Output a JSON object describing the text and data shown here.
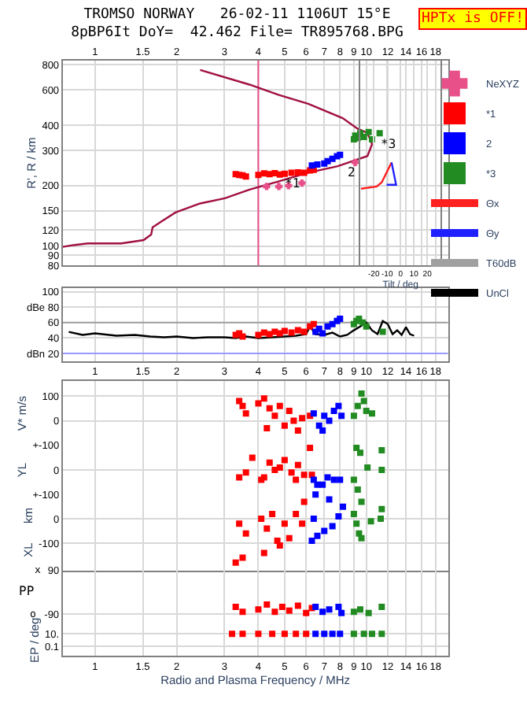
{
  "chart_data": [
    {
      "type": "scatter",
      "title": "TROMSO NORWAY   26-02-11 1106UT 15°E",
      "subtitle": "8pBP6It DoY=  42.462 File= TR895768.BPG",
      "ylabel": "R', R / km",
      "log": "xy",
      "xlim": [
        0.76,
        20
      ],
      "ylim": [
        80,
        840
      ],
      "xticks": [
        1,
        1.5,
        2,
        3,
        4,
        5,
        6,
        7,
        8,
        9,
        10,
        12,
        14,
        16,
        18
      ],
      "yticks": [
        80,
        90,
        100,
        120,
        150,
        200,
        300,
        400,
        600,
        800
      ],
      "grid": true,
      "legend": "right",
      "annotations": [
        "HPTx is OFF!",
        "*1",
        "2",
        "*3"
      ],
      "ref_lines": [
        {
          "axis": "x",
          "value": 4,
          "color": "#e8508a"
        }
      ],
      "series": [
        {
          "type": "line",
          "color": "#a01040",
          "marker": "none",
          "x": [
            0.76,
            0.83,
            0.94,
            1.25,
            1.51,
            1.61,
            1.63,
            1.75,
            1.98,
            2.44,
            3.01,
            3.71,
            4.76,
            6.11,
            7.85,
            10.1,
            10.5,
            10.1,
            9.28,
            8.18,
            6.11,
            4.76,
            3.71,
            2.44
          ],
          "values": [
            99,
            101,
            103,
            103,
            107,
            114,
            124,
            132,
            147,
            163,
            173,
            191,
            210,
            232,
            250,
            281,
            322,
            366,
            385,
            434,
            512,
            566,
            638,
            755
          ]
        },
        {
          "name": "NeXYZ",
          "color": "#e8508a",
          "marker": "cross",
          "x": [
            4.29,
            4.76,
            5.17,
            5.79,
            9.1
          ],
          "values": [
            198,
            198,
            200,
            206,
            261
          ]
        },
        {
          "name": "*1",
          "color": "#ff0000",
          "marker": "square",
          "x": [
            3.3,
            3.4,
            3.5,
            3.6,
            4.0,
            4.2,
            4.4,
            4.6,
            4.8,
            5.0,
            5.3,
            5.6,
            5.9,
            6.2,
            6.4
          ],
          "values": [
            228,
            226,
            225,
            222,
            226,
            230,
            228,
            231,
            227,
            229,
            232,
            233,
            232,
            238,
            240
          ]
        },
        {
          "name": "2",
          "color": "#0000ff",
          "marker": "square",
          "x": [
            6.3,
            6.6,
            7.0,
            7.2,
            7.5,
            7.8,
            8.0
          ],
          "values": [
            252,
            255,
            258,
            265,
            272,
            280,
            285
          ]
        },
        {
          "name": "*3",
          "color": "#228b22",
          "marker": "square",
          "x": [
            9.0,
            9.1,
            9.3,
            9.5,
            9.8,
            10.2,
            10.5,
            11.2
          ],
          "values": [
            340,
            355,
            345,
            365,
            350,
            370,
            340,
            365
          ]
        }
      ]
    },
    {
      "type": "line",
      "xlabel": "Tilt / deg",
      "log": "y",
      "xlim": [
        -30,
        30
      ],
      "ylim": [
        80,
        840
      ],
      "xticks": [
        -20,
        -10,
        0,
        10,
        20
      ],
      "tick_labels": "x",
      "grid": "x",
      "legend": "right",
      "series": [
        {
          "name": "Θx",
          "color": "#ff2020",
          "x": [
            -29.6,
            -17.8,
            -14,
            -6.7
          ],
          "values": [
            193,
            198,
            208,
            261
          ]
        },
        {
          "name": "Θy",
          "color": "#2020ff",
          "x": [
            -6.7,
            -3.3,
            -10.4
          ],
          "values": [
            261,
            202,
            202
          ]
        }
      ]
    },
    {
      "type": "scatter",
      "xlim": [
        0.76,
        20
      ],
      "log": "x",
      "ylim": [
        10,
        105
      ],
      "xticks": [
        1,
        1.5,
        2,
        3,
        4,
        5,
        6,
        7,
        8,
        9,
        10,
        12,
        14,
        16,
        18
      ],
      "yticks": [
        100,
        {
          "value": 80,
          "label": "dBe 80"
        },
        60,
        40,
        {
          "value": 20,
          "label": "dBn 20"
        }
      ],
      "grid": true,
      "legend": "right",
      "ref_lines": [
        {
          "axis": "y",
          "value": 60,
          "label": "T60dB",
          "color": "#a0a0a0"
        },
        {
          "axis": "y",
          "value": 20,
          "color": "#9999ff"
        }
      ],
      "series": [
        {
          "name": "UnCl",
          "type": "line",
          "color": "#000000",
          "marker": "none",
          "x": [
            0.8,
            0.9,
            1.0,
            1.2,
            1.4,
            1.6,
            1.8,
            2.0,
            2.3,
            2.6,
            3.0,
            3.3,
            3.6,
            4.0,
            4.5,
            5.0,
            5.5,
            6.0,
            6.2,
            6.5,
            7.0,
            7.5,
            8.0,
            8.5,
            9.0,
            9.5,
            10.0,
            10.5,
            11.0,
            11.5,
            12.0,
            12.5,
            13.0,
            13.5,
            14.0,
            14.5,
            15.0
          ],
          "values": [
            48,
            44,
            46,
            43,
            44,
            42,
            41,
            42,
            40,
            41,
            41,
            40,
            42,
            40,
            41,
            42,
            43,
            45,
            55,
            45,
            44,
            47,
            42,
            44,
            50,
            55,
            60,
            50,
            45,
            62,
            58,
            45,
            50,
            44,
            54,
            45,
            43
          ]
        },
        {
          "color": "#ff0000",
          "marker": "square",
          "x": [
            3.3,
            3.4,
            3.5,
            4.0,
            4.2,
            4.4,
            4.6,
            4.8,
            5.0,
            5.3,
            5.6,
            5.9,
            6.2,
            6.4
          ],
          "values": [
            44,
            46,
            42,
            44,
            47,
            45,
            48,
            46,
            49,
            47,
            50,
            48,
            55,
            58
          ]
        },
        {
          "color": "#0000ff",
          "marker": "square",
          "x": [
            6.5,
            6.7,
            6.9,
            7.2,
            7.5,
            7.8,
            8.0
          ],
          "values": [
            48,
            52,
            46,
            55,
            58,
            62,
            65
          ]
        },
        {
          "color": "#228b22",
          "marker": "square",
          "x": [
            9.0,
            9.2,
            9.4,
            9.7,
            10.0,
            11.5
          ],
          "values": [
            58,
            62,
            65,
            60,
            55,
            48
          ]
        }
      ]
    },
    {
      "type": "scatter",
      "ylabel": "V* m/s",
      "log": "x",
      "xlim": [
        0.76,
        20
      ],
      "ylim": [
        -100,
        160
      ],
      "xticks": [
        1,
        1.5,
        2,
        3,
        4,
        5,
        6,
        7,
        8,
        9,
        10,
        12,
        14,
        16,
        18
      ],
      "yticks": [
        100,
        0,
        {
          "value": -100,
          "label": "+-100"
        }
      ],
      "tick_labels": "y",
      "grid": true,
      "series": [
        {
          "color": "#ff0000",
          "marker": "square",
          "x": [
            3.4,
            3.5,
            3.6,
            4.0,
            4.2,
            4.4,
            4.6,
            4.8,
            5.0,
            5.2,
            5.4,
            5.6,
            5.8,
            4.3,
            6.2
          ],
          "values": [
            80,
            60,
            30,
            70,
            90,
            50,
            20,
            60,
            -20,
            40,
            0,
            -40,
            10,
            -30,
            20
          ]
        },
        {
          "color": "#0000ff",
          "marker": "square",
          "x": [
            6.4,
            6.7,
            7.0,
            7.3,
            7.6,
            7.9,
            8.1,
            6.9
          ],
          "values": [
            30,
            -20,
            20,
            0,
            40,
            60,
            20,
            -40
          ]
        },
        {
          "color": "#228b22",
          "marker": "square",
          "x": [
            9.0,
            9.3,
            9.6,
            10.0,
            10.5,
            9.8
          ],
          "values": [
            20,
            60,
            110,
            40,
            30,
            80
          ]
        }
      ]
    },
    {
      "type": "scatter",
      "ylabel": "YL",
      "log": "x",
      "xlim": [
        0.76,
        20
      ],
      "ylim": [
        -100,
        100
      ],
      "xticks": [
        1,
        1.5,
        2,
        3,
        4,
        5,
        6,
        7,
        8,
        9,
        10,
        12,
        14,
        16,
        18
      ],
      "yticks": [
        0,
        {
          "value": -100,
          "label": "+-100"
        }
      ],
      "tick_labels": "y",
      "grid": true,
      "series": [
        {
          "color": "#ff0000",
          "marker": "square",
          "x": [
            3.4,
            3.6,
            3.8,
            4.1,
            4.4,
            4.6,
            4.8,
            5.0,
            5.3,
            5.6,
            5.9,
            6.2,
            6.3,
            4.2,
            5.5
          ],
          "values": [
            -30,
            -10,
            50,
            -40,
            30,
            0,
            10,
            40,
            -10,
            20,
            -20,
            90,
            -20,
            -30,
            -40
          ]
        },
        {
          "color": "#0000ff",
          "marker": "square",
          "x": [
            6.4,
            6.6,
            6.9,
            7.2,
            7.6,
            8.0
          ],
          "values": [
            -40,
            -60,
            -60,
            -30,
            -40,
            -40
          ]
        },
        {
          "color": "#228b22",
          "marker": "square",
          "x": [
            9.0,
            9.2,
            9.5,
            10.1,
            11.4,
            11.4,
            9.3
          ],
          "values": [
            -40,
            90,
            70,
            10,
            80,
            0,
            -80
          ]
        }
      ]
    },
    {
      "type": "scatter",
      "ylabel": "XL      km",
      "log": "x",
      "xlim": [
        0.76,
        20
      ],
      "ylim": [
        -212,
        100
      ],
      "xticks": [
        1,
        1.5,
        2,
        3,
        4,
        5,
        6,
        7,
        8,
        9,
        10,
        12,
        14,
        16,
        18
      ],
      "yticks": [
        0,
        -100
      ],
      "tick_labels": "y",
      "grid": true,
      "series": [
        {
          "color": "#ff0000",
          "marker": "square",
          "x": [
            3.3,
            3.4,
            3.6,
            3.5,
            4.1,
            4.3,
            4.5,
            4.7,
            5.0,
            5.2,
            5.5,
            5.8,
            4.2,
            4.8,
            5.9
          ],
          "values": [
            -180,
            -20,
            -60,
            -160,
            0,
            -40,
            20,
            -90,
            -20,
            -80,
            20,
            -20,
            -140,
            -110,
            70
          ]
        },
        {
          "color": "#0000ff",
          "marker": "square",
          "x": [
            6.4,
            6.6,
            7.0,
            7.5,
            7.9,
            8.2,
            6.3,
            6.5,
            7.3
          ],
          "values": [
            0,
            -70,
            -50,
            -30,
            10,
            50,
            -90,
            100,
            80
          ]
        },
        {
          "color": "#228b22",
          "marker": "square",
          "x": [
            9.0,
            9.2,
            9.4,
            9.6,
            10.4,
            11.4,
            11.3,
            9.6
          ],
          "values": [
            20,
            -20,
            -60,
            -80,
            -10,
            40,
            0,
            70
          ]
        }
      ]
    },
    {
      "type": "scatter",
      "log": "x",
      "xlim": [
        0.76,
        20
      ],
      "ylim": [
        -133,
        90
      ],
      "xticks": [
        1,
        1.5,
        2,
        3,
        4,
        5,
        6,
        7,
        8,
        9,
        10,
        12,
        14,
        16,
        18
      ],
      "yticks": [
        90,
        -90
      ],
      "tick_labels": "y",
      "grid": true,
      "annotations": [
        "PP",
        "x",
        "o"
      ],
      "series": [
        {
          "color": "#ff0000",
          "marker": "square",
          "x": [
            3.3,
            3.5,
            4.0,
            4.3,
            4.6,
            4.9,
            5.2,
            5.6,
            6.0,
            6.3
          ],
          "values": [
            -60,
            -80,
            -70,
            -50,
            -80,
            -60,
            -75,
            -55,
            -85,
            -65
          ]
        },
        {
          "color": "#0000ff",
          "marker": "square",
          "x": [
            6.5,
            6.9,
            7.3,
            7.9,
            8.1
          ],
          "values": [
            -60,
            -80,
            -70,
            -60,
            -85
          ]
        },
        {
          "color": "#228b22",
          "marker": "square",
          "x": [
            9.0,
            9.5,
            10.2,
            11.4
          ],
          "values": [
            -80,
            -70,
            -85,
            -60
          ]
        }
      ]
    },
    {
      "type": "scatter",
      "ylabel": "EP / deg",
      "xlabel": "Radio and Plasma Frequency / MHz",
      "log": "xy",
      "xlim": [
        0.76,
        20
      ],
      "ylim": [
        0.003,
        300
      ],
      "xticks": [
        1,
        1.5,
        2,
        3,
        4,
        5,
        6,
        7,
        8,
        9,
        10,
        12,
        14,
        16,
        18
      ],
      "yticks": [
        {
          "value": 10,
          "label": "10."
        },
        0.1
      ],
      "grid": true,
      "series": [
        {
          "color": "#ff0000",
          "marker": "square",
          "x": [
            3.2,
            3.5,
            4.0,
            4.5,
            5.0,
            5.5,
            6.0
          ],
          "values": [
            10,
            10,
            10,
            10,
            10,
            10,
            10
          ]
        },
        {
          "color": "#0000ff",
          "marker": "square",
          "x": [
            6.5,
            7.0,
            7.5,
            8.0
          ],
          "values": [
            10,
            10,
            10,
            10
          ]
        },
        {
          "color": "#228b22",
          "marker": "square",
          "x": [
            9.0,
            9.8,
            10.5,
            11.4
          ],
          "values": [
            10,
            10,
            10,
            10
          ]
        }
      ]
    }
  ]
}
